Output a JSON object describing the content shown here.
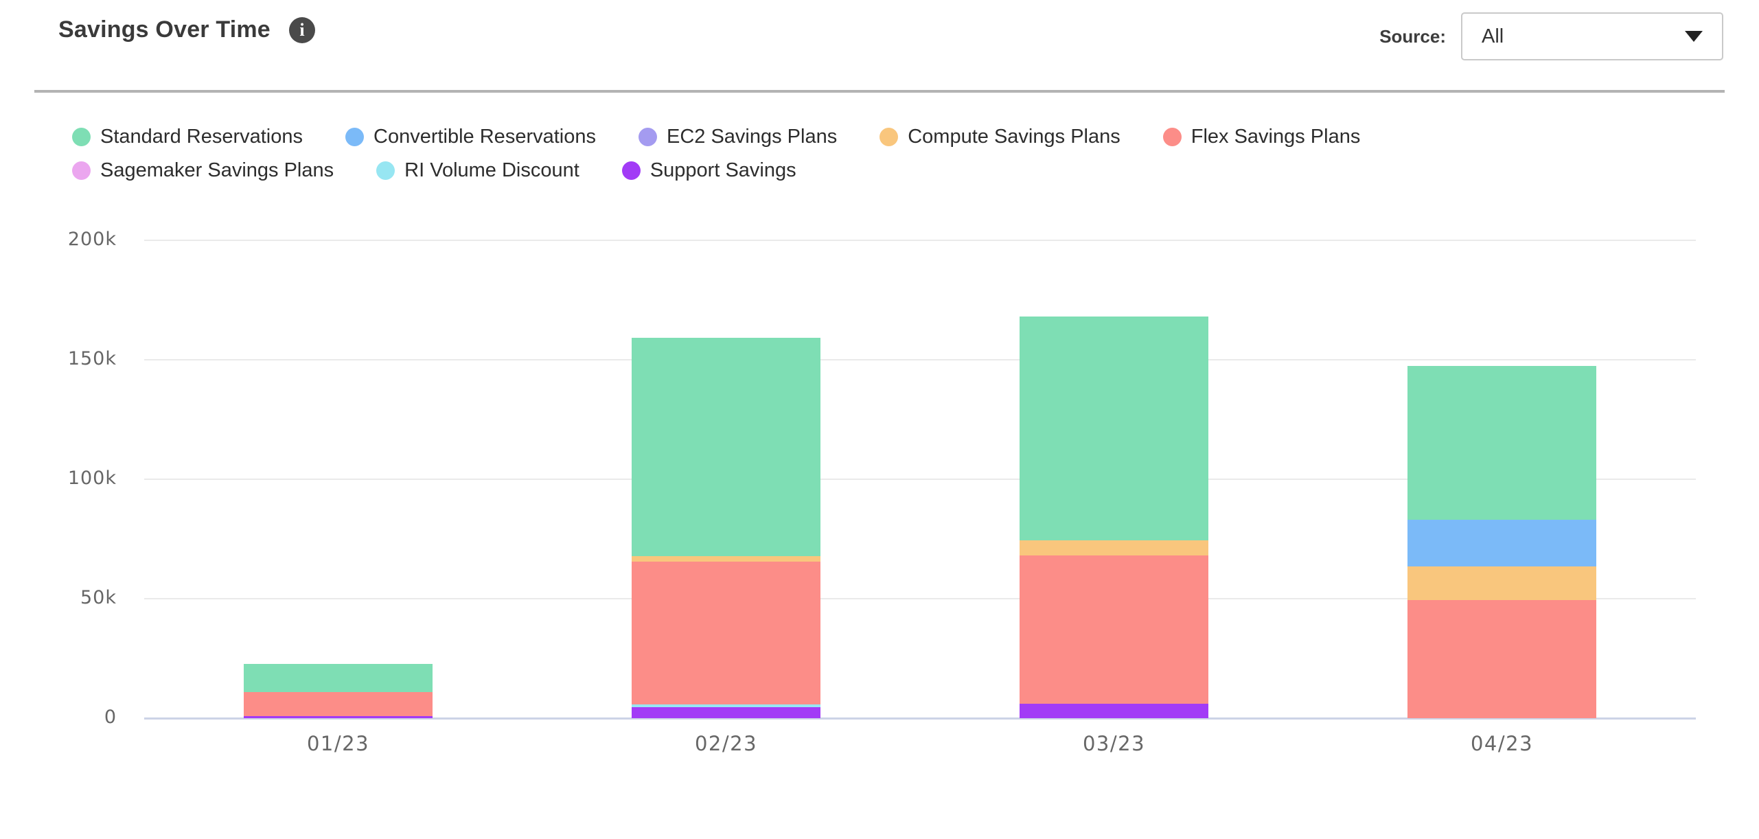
{
  "header": {
    "title": "Savings Over Time",
    "info_glyph": "i",
    "source_label": "Source:",
    "source_value": "All"
  },
  "chart_data": {
    "type": "bar",
    "stacked": true,
    "title": "Savings Over Time",
    "categories": [
      "01/23",
      "02/23",
      "03/23",
      "04/23"
    ],
    "value_unit": "thousands (k)",
    "ylim": [
      0,
      200
    ],
    "grid": true,
    "legend_position": "top",
    "stack_order": "reverse-legend (Support at bottom, Standard on top)",
    "y_ticks": [
      {
        "value": 0,
        "label": "0"
      },
      {
        "value": 50,
        "label": "50k"
      },
      {
        "value": 100,
        "label": "100k"
      },
      {
        "value": 150,
        "label": "150k"
      },
      {
        "value": 200,
        "label": "200k"
      }
    ],
    "series": [
      {
        "name": "Standard Reservations",
        "color": "#7EDEB4",
        "values": [
          12,
          91.4,
          93.5,
          64.5
        ]
      },
      {
        "name": "Convertible Reservations",
        "color": "#7BBAF8",
        "values": [
          0,
          0,
          0,
          19.5
        ]
      },
      {
        "name": "EC2 Savings Plans",
        "color": "#A49BF0",
        "values": [
          0,
          0,
          0,
          0
        ]
      },
      {
        "name": "Compute Savings Plans",
        "color": "#F9C67D",
        "values": [
          0,
          2.4,
          6.5,
          14
        ]
      },
      {
        "name": "Flex Savings Plans",
        "color": "#FC8D88",
        "values": [
          9.8,
          59.7,
          62,
          49.5
        ]
      },
      {
        "name": "Sagemaker Savings Plans",
        "color": "#EBA6EF",
        "values": [
          0,
          0,
          0,
          0
        ]
      },
      {
        "name": "RI Volume Discount",
        "color": "#97E6F2",
        "values": [
          0,
          1.1,
          0,
          0
        ]
      },
      {
        "name": "Support Savings",
        "color": "#A23BF6",
        "values": [
          1,
          4.6,
          6,
          0
        ]
      }
    ],
    "totals": [
      22.8,
      159.2,
      168,
      147.5
    ]
  }
}
